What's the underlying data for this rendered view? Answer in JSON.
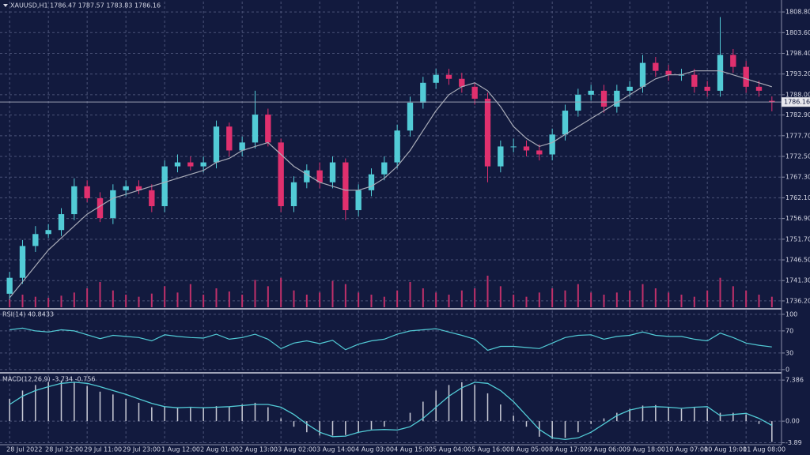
{
  "chart_data": [
    {
      "type": "candlestick",
      "title": "XAUUSD,H1  1786.47 1787.57 1783.83 1786.16",
      "categories": [
        "28 Jul 2022",
        null,
        null,
        "28 Jul 22:00",
        null,
        null,
        "29 Jul 11:00",
        null,
        null,
        "29 Jul 23:00",
        null,
        null,
        "1 Aug 12:00",
        null,
        null,
        "2 Aug 01:00",
        null,
        null,
        "2 Aug 13:00",
        null,
        null,
        "3 Aug 02:00",
        null,
        null,
        "3 Aug 14:00",
        null,
        null,
        "4 Aug 03:00",
        null,
        null,
        "4 Aug 15:00",
        null,
        null,
        "5 Aug 04:00",
        null,
        null,
        "5 Aug 16:00",
        null,
        null,
        "8 Aug 05:00",
        null,
        null,
        "8 Aug 17:00",
        null,
        null,
        "9 Aug 06:00",
        null,
        null,
        "9 Aug 18:00",
        null,
        null,
        "10 Aug 07:00",
        null,
        null,
        "10 Aug 19:00",
        null,
        null,
        "11 Aug 08:00",
        null,
        null
      ],
      "open": [
        1738,
        1742,
        1750,
        1753,
        1754,
        1758,
        1765,
        1762,
        1757,
        1764,
        1765,
        1764,
        1760,
        1770,
        1771,
        1770,
        1771,
        1780,
        1774,
        1776,
        1783,
        1776,
        1760,
        1766,
        1769,
        1766,
        1771,
        1759,
        1764,
        1768,
        1771,
        1779,
        1786,
        1791,
        1793,
        1792,
        1790,
        1787,
        1770,
        1775,
        1775,
        1774,
        1773,
        1778,
        1784,
        1788,
        1789,
        1785,
        1789,
        1790,
        1796,
        1794,
        1793,
        1793,
        1790,
        1789,
        1798,
        1795,
        1790,
        1786.47
      ],
      "high": [
        1743.5,
        1751.5,
        1755,
        1755.5,
        1759.5,
        1767,
        1766.5,
        1763.5,
        1765.5,
        1766.5,
        1766.5,
        1765.5,
        1771.5,
        1773,
        1772.5,
        1772.5,
        1781.5,
        1781,
        1777.5,
        1789,
        1784.5,
        1777,
        1767.5,
        1770.5,
        1771,
        1772.5,
        1772,
        1765.5,
        1769.5,
        1772.5,
        1780.5,
        1787.5,
        1792.5,
        1794.5,
        1794.5,
        1793.5,
        1791,
        1788.5,
        1776.5,
        1777,
        1776.5,
        1775.5,
        1779.5,
        1785.5,
        1789.5,
        1790.5,
        1790.5,
        1790.5,
        1791.5,
        1798,
        1797.5,
        1795.5,
        1794.5,
        1794.5,
        1791.5,
        1807.5,
        1799.5,
        1796.5,
        1791.5,
        1787.57
      ],
      "low": [
        1736.5,
        1740.5,
        1748.5,
        1752,
        1752.5,
        1756.5,
        1761,
        1756,
        1755.5,
        1762.5,
        1763,
        1758.5,
        1758.5,
        1768.5,
        1769,
        1768.5,
        1769.5,
        1772.5,
        1772.5,
        1774.5,
        1775,
        1758.5,
        1758.5,
        1764.5,
        1764.5,
        1764.5,
        1756.5,
        1757.5,
        1762.5,
        1766.5,
        1769.5,
        1777.5,
        1784.5,
        1789.5,
        1790.5,
        1788.5,
        1785.5,
        1766,
        1768.5,
        1773.5,
        1772.5,
        1771.5,
        1771.5,
        1776.5,
        1782.5,
        1786.5,
        1783.5,
        1783.5,
        1787.5,
        1788.5,
        1792.5,
        1791.5,
        1791.5,
        1788.5,
        1787.5,
        1787.5,
        1793.5,
        1788.5,
        1787.5,
        1783.83
      ],
      "close": [
        1742,
        1750,
        1753,
        1754,
        1758,
        1765,
        1762,
        1757,
        1764,
        1765,
        1764,
        1760,
        1770,
        1771,
        1770,
        1771,
        1780,
        1774,
        1776,
        1783,
        1776,
        1760,
        1766,
        1769,
        1766,
        1771,
        1759,
        1764,
        1768,
        1771,
        1779,
        1786,
        1791,
        1793,
        1792,
        1790,
        1787,
        1770,
        1775,
        1775,
        1774,
        1773,
        1778,
        1784,
        1788,
        1789,
        1785,
        1789,
        1790,
        1796,
        1794,
        1793,
        1793,
        1790,
        1789,
        1798,
        1795,
        1790,
        1789,
        1786.16
      ],
      "up_color": "#52cbd6",
      "down_color": "#e0306e",
      "ma": {
        "color": "#a9acb8",
        "values": [
          1737,
          1741,
          1745,
          1749,
          1752,
          1755,
          1758,
          1760,
          1762,
          1763,
          1764,
          1765,
          1766,
          1767,
          1768,
          1769,
          1771,
          1772,
          1774,
          1775,
          1776,
          1773,
          1770,
          1768,
          1766,
          1765,
          1764,
          1764,
          1765,
          1767,
          1770,
          1774,
          1779,
          1784,
          1788,
          1790,
          1791,
          1789,
          1785,
          1780,
          1777,
          1775,
          1776,
          1778,
          1780,
          1782,
          1784,
          1786,
          1788,
          1790,
          1792,
          1793,
          1793,
          1794,
          1794,
          1794,
          1793,
          1792,
          1791,
          1790
        ]
      },
      "volume": {
        "color": "#c0306a",
        "values": [
          8,
          12,
          10,
          9,
          11,
          14,
          18,
          24,
          16,
          12,
          10,
          13,
          20,
          14,
          22,
          12,
          18,
          15,
          12,
          26,
          20,
          28,
          16,
          12,
          14,
          25,
          22,
          14,
          12,
          10,
          16,
          24,
          18,
          14,
          12,
          16,
          18,
          30,
          20,
          12,
          10,
          14,
          18,
          16,
          22,
          14,
          12,
          14,
          16,
          22,
          18,
          14,
          12,
          10,
          16,
          28,
          20,
          16,
          12,
          10
        ]
      },
      "last_price": 1786.16,
      "ylim": [
        1734.4,
        1811.4
      ],
      "yticks": [
        {
          "value": 1808.8,
          "label": "1808.80"
        },
        {
          "value": 1803.6,
          "label": "1803.60"
        },
        {
          "value": 1798.4,
          "label": "1798.40"
        },
        {
          "value": 1793.2,
          "label": "1793.20"
        },
        {
          "value": 1788,
          "label": "1788.00"
        },
        {
          "value": 1782.9,
          "label": "1782.90"
        },
        {
          "value": 1777.7,
          "label": "1777.70"
        },
        {
          "value": 1772.5,
          "label": "1772.50"
        },
        {
          "value": 1767.3,
          "label": "1767.30"
        },
        {
          "value": 1762.1,
          "label": "1762.10"
        },
        {
          "value": 1756.9,
          "label": "1756.90"
        },
        {
          "value": 1751.7,
          "label": "1751.70"
        },
        {
          "value": 1746.5,
          "label": "1746.50"
        },
        {
          "value": 1741.3,
          "label": "1741.30"
        },
        {
          "value": 1736.2,
          "label": "1736.20"
        }
      ],
      "grid": true
    },
    {
      "type": "line",
      "title": "RSI(14) 40.8433",
      "color": "#52cbd6",
      "values": [
        72,
        75,
        70,
        68,
        72,
        70,
        63,
        56,
        62,
        60,
        58,
        52,
        63,
        60,
        58,
        57,
        64,
        55,
        58,
        64,
        55,
        38,
        48,
        52,
        47,
        53,
        36,
        46,
        52,
        55,
        64,
        70,
        72,
        74,
        68,
        62,
        55,
        35,
        42,
        42,
        40,
        38,
        48,
        58,
        62,
        63,
        55,
        60,
        62,
        68,
        62,
        60,
        60,
        55,
        52,
        66,
        58,
        48,
        44,
        41
      ],
      "ylim": [
        -3,
        107
      ],
      "yticks": [
        100,
        70,
        30,
        0
      ],
      "grid": true
    },
    {
      "type": "macd",
      "title": "MACD(12,26,9) -3.734 -0.756",
      "histogram": {
        "color": "#c9cbd6",
        "values": [
          4,
          5.5,
          6.5,
          7,
          7.3,
          7,
          6.3,
          5.3,
          4.8,
          4,
          3.3,
          2.5,
          2.6,
          2.5,
          2.4,
          2.4,
          2.7,
          2.6,
          3,
          3.3,
          2.5,
          0.5,
          -1,
          -2,
          -2.6,
          -2.6,
          -2.5,
          -2,
          -1.5,
          -1,
          0,
          1.5,
          3.5,
          5.5,
          6.5,
          7,
          6.5,
          5,
          3,
          1,
          -1,
          -2.8,
          -3.2,
          -3,
          -2,
          -0.5,
          0.5,
          1.5,
          2.2,
          2.8,
          2.9,
          2.5,
          2.2,
          2.4,
          2.3,
          1.5,
          1.5,
          1.2,
          -0.5,
          -3.734
        ]
      },
      "signal": {
        "color": "#52cbd6",
        "values": [
          3,
          4.5,
          5.5,
          6.2,
          6.8,
          7,
          6.8,
          6.2,
          5.5,
          4.8,
          4,
          3.2,
          2.6,
          2.4,
          2.5,
          2.4,
          2.5,
          2.6,
          2.8,
          3,
          3,
          2.5,
          1.2,
          -0.5,
          -2,
          -2.8,
          -2.7,
          -2,
          -1.6,
          -1.5,
          -1.6,
          -1,
          0.5,
          2.5,
          4.5,
          6,
          7,
          6.8,
          5.5,
          3.5,
          1,
          -1.5,
          -3,
          -3.3,
          -3,
          -2,
          -0.5,
          1,
          2,
          2.5,
          2.6,
          2.5,
          2.3,
          2.5,
          2.6,
          1,
          1.2,
          1.4,
          0.5,
          -0.756
        ]
      },
      "ylim": [
        -4.1,
        8.4
      ],
      "yticks": [
        7.386,
        {
          "value": 0,
          "label": "0.00"
        },
        -3.89
      ],
      "grid": true
    }
  ]
}
